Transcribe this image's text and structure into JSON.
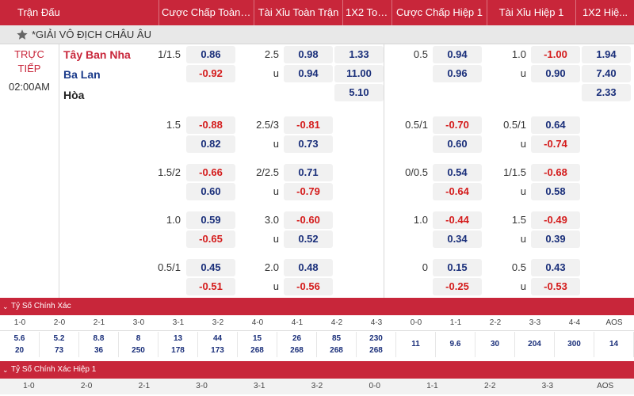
{
  "header": {
    "columns": [
      "Trận Đấu",
      "Cược Chấp Toàn ...",
      "Tài Xỉu Toàn Trận",
      "1X2 Toà...",
      "Cược Chấp Hiệp 1",
      "Tài Xỉu Hiệp 1",
      "1X2 Hiệ..."
    ]
  },
  "league": {
    "name": "*GIẢI VÔ ĐỊCH CHÂU ÂU"
  },
  "match": {
    "status_line1": "TRỰC",
    "status_line2": "TIẾP",
    "time": "02:00AM",
    "home": "Tây Ban Nha",
    "away": "Ba Lan",
    "draw": "Hòa"
  },
  "markets": {
    "main": {
      "ft_hdp_line": "1/1.5",
      "ft_hdp_home": "0.86",
      "ft_hdp_away": "-0.92",
      "ft_ou_line": "2.5",
      "ft_ou_u": "u",
      "ft_ou_over": "0.98",
      "ft_ou_under": "0.94",
      "ft_1x2_home": "1.33",
      "ft_1x2_away": "11.00",
      "ft_1x2_draw": "5.10",
      "h1_hdp_line": "0.5",
      "h1_hdp_home": "0.94",
      "h1_hdp_away": "0.96",
      "h1_ou_line": "1.0",
      "h1_ou_u": "u",
      "h1_ou_over": "-1.00",
      "h1_ou_under": "0.90",
      "h1_1x2_home": "1.94",
      "h1_1x2_away": "7.40",
      "h1_1x2_draw": "2.33"
    },
    "rows": [
      {
        "ft_hdp_line": "1.5",
        "ft_hdp_home": "-0.88",
        "ft_hdp_away": "0.82",
        "ft_ou_line": "2.5/3",
        "ft_ou_u": "u",
        "ft_ou_over": "-0.81",
        "ft_ou_under": "0.73",
        "h1_hdp_line": "0.5/1",
        "h1_hdp_home": "-0.70",
        "h1_hdp_away": "0.60",
        "h1_ou_line": "0.5/1",
        "h1_ou_u": "u",
        "h1_ou_over": "0.64",
        "h1_ou_under": "-0.74"
      },
      {
        "ft_hdp_line": "1.5/2",
        "ft_hdp_home": "-0.66",
        "ft_hdp_away": "0.60",
        "ft_ou_line": "2/2.5",
        "ft_ou_u": "u",
        "ft_ou_over": "0.71",
        "ft_ou_under": "-0.79",
        "h1_hdp_line": "0/0.5",
        "h1_hdp_home": "0.54",
        "h1_hdp_away": "-0.64",
        "h1_ou_line": "1/1.5",
        "h1_ou_u": "u",
        "h1_ou_over": "-0.68",
        "h1_ou_under": "0.58"
      },
      {
        "ft_hdp_line": "1.0",
        "ft_hdp_home": "0.59",
        "ft_hdp_away": "-0.65",
        "ft_ou_line": "3.0",
        "ft_ou_u": "u",
        "ft_ou_over": "-0.60",
        "ft_ou_under": "0.52",
        "h1_hdp_line": "1.0",
        "h1_hdp_home": "-0.44",
        "h1_hdp_away": "0.34",
        "h1_ou_line": "1.5",
        "h1_ou_u": "u",
        "h1_ou_over": "-0.49",
        "h1_ou_under": "0.39"
      },
      {
        "ft_hdp_line": "0.5/1",
        "ft_hdp_home": "0.45",
        "ft_hdp_away": "-0.51",
        "ft_ou_line": "2.0",
        "ft_ou_u": "u",
        "ft_ou_over": "0.48",
        "ft_ou_under": "-0.56",
        "h1_hdp_line": "0",
        "h1_hdp_home": "0.15",
        "h1_hdp_away": "-0.25",
        "h1_ou_line": "0.5",
        "h1_ou_u": "u",
        "h1_ou_over": "0.43",
        "h1_ou_under": "-0.53"
      }
    ]
  },
  "correct_score": {
    "title": "Tỷ Số Chính Xác",
    "labels": [
      "1-0",
      "2-0",
      "2-1",
      "3-0",
      "3-1",
      "3-2",
      "4-0",
      "4-1",
      "4-2",
      "4-3",
      "0-0",
      "1-1",
      "2-2",
      "3-3",
      "4-4",
      "AOS"
    ],
    "odds_top": [
      "5.6",
      "5.2",
      "8.8",
      "8",
      "13",
      "44",
      "15",
      "26",
      "85",
      "230",
      "11",
      "9.6",
      "30",
      "204",
      "300",
      "14"
    ],
    "odds_bottom": [
      "20",
      "73",
      "36",
      "250",
      "178",
      "173",
      "268",
      "268",
      "268",
      "268",
      "",
      "",
      "",
      "",
      "",
      ""
    ]
  },
  "correct_score_h1": {
    "title": "Tỷ Số Chính Xác Hiệp 1",
    "labels": [
      "1-0",
      "2-0",
      "2-1",
      "3-0",
      "3-1",
      "3-2",
      "0-0",
      "1-1",
      "2-2",
      "3-3",
      "AOS"
    ]
  },
  "colors": {
    "brand_red": "#c8263a",
    "odd_blue": "#1a2f7a",
    "odd_red": "#d41b1b"
  }
}
